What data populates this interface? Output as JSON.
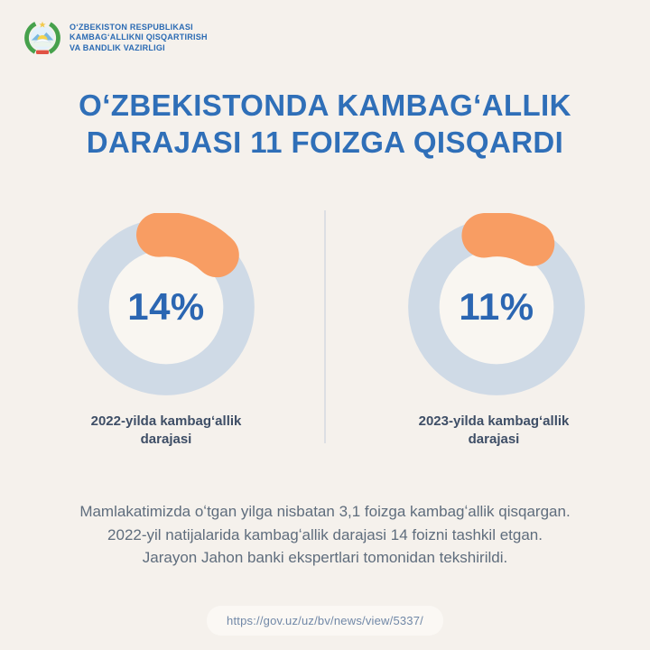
{
  "page": {
    "background": "#f5f1ec"
  },
  "header": {
    "emblem_icon": "uzbekistan-state-emblem",
    "org_name": "OʻZBEKISTON RESPUBLIKASI\nKAMBAGʻALLIKNI QISQARTIRISH\nVA BANDLIK VAZIRLIGI"
  },
  "title": {
    "text": "OʻZBEKISTONDA KAMBAGʻALLIK\nDARAJASI 11 FOIZGA QISQARDI"
  },
  "chart_data": {
    "type": "pie",
    "subtype": "donut",
    "description": "Two donut charts comparing poverty rate in Uzbekistan",
    "legend_position": "none",
    "colors": {
      "ring": "#cfdae6",
      "slice": "#f89d63",
      "hole": "#f9f6f1",
      "value_text": "#2b66b2"
    },
    "charts": [
      {
        "value": 14,
        "value_label": "14%",
        "arc_start_deg": -6,
        "caption": "2022-yilda kambagʻallik darajasi"
      },
      {
        "value": 11,
        "value_label": "11%",
        "arc_start_deg": -10,
        "caption": "2023-yilda kambagʻallik darajasi"
      }
    ]
  },
  "body": {
    "text": "Mamlakatimizda oʻtgan yilga nisbatan 3,1 foizga kambagʻallik qisqargan.\n2022-yil natijalarida kambagʻallik darajasi 14 foizni tashkil etgan.\nJarayon Jahon banki ekspertlari tomonidan tekshirildi."
  },
  "footer": {
    "url": "https://gov.uz/uz/bv/news/view/5337/"
  }
}
